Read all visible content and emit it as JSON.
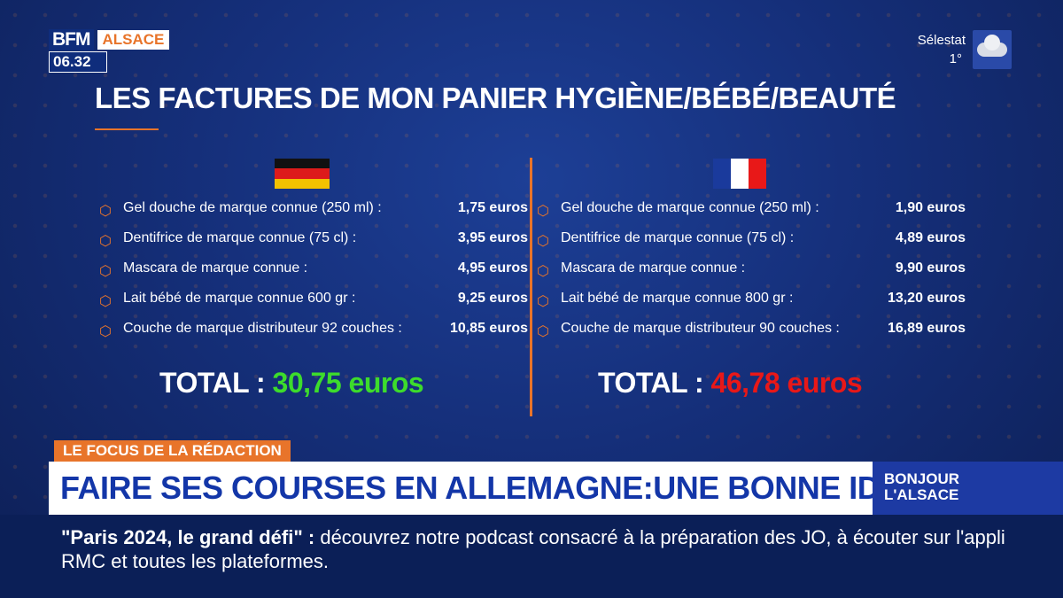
{
  "channel": {
    "logo": "BFM",
    "region": "ALSACE",
    "clock": "06.32"
  },
  "weather": {
    "city": "Sélestat",
    "temp": "1°",
    "icon": "cloud-icon"
  },
  "title": "LES FACTURES DE MON PANIER HYGIÈNE/BÉBÉ/BEAUTÉ",
  "colors": {
    "accent": "#e8742a",
    "green": "#3ddc2c",
    "red": "#e81818",
    "navy": "#152f7a"
  },
  "germany": {
    "items": [
      {
        "label": "Gel douche de marque connue (250 ml) :",
        "price": "1,75 euros"
      },
      {
        "label": "Dentifrice de marque connue (75 cl) :",
        "price": "3,95 euros"
      },
      {
        "label": "Mascara de marque connue :",
        "price": "4,95 euros"
      },
      {
        "label": "Lait bébé de marque connue 600 gr :",
        "price": "9,25 euros"
      },
      {
        "label": "Couche de marque distributeur 92 couches :",
        "price": "10,85 euros"
      }
    ],
    "total_label": "TOTAL : ",
    "total_value": "30,75 euros"
  },
  "france": {
    "items": [
      {
        "label": "Gel douche de marque connue (250 ml) :",
        "price": "1,90 euros"
      },
      {
        "label": "Dentifrice de marque connue (75 cl) :",
        "price": "4,89 euros"
      },
      {
        "label": "Mascara de marque connue :",
        "price": "9,90 euros"
      },
      {
        "label": "Lait bébé de marque connue 800 gr :",
        "price": "13,20 euros"
      },
      {
        "label": "Couche de marque distributeur 90 couches :",
        "price": "16,89 euros"
      }
    ],
    "total_label": "TOTAL : ",
    "total_value": "46,78 euros"
  },
  "lower_third": {
    "tag": "LE FOCUS DE LA RÉDACTION",
    "headline": "FAIRE SES COURSES EN ALLEMAGNE:UNE BONNE IDÉE?",
    "show_line1": "BONJOUR",
    "show_line2": "L'ALSACE"
  },
  "ticker": {
    "quote": "\"Paris 2024, le grand défi\"",
    "separator": " : ",
    "text": "découvrez notre podcast consacré à la préparation des JO, à écouter sur l'appli RMC et toutes les plateformes."
  }
}
